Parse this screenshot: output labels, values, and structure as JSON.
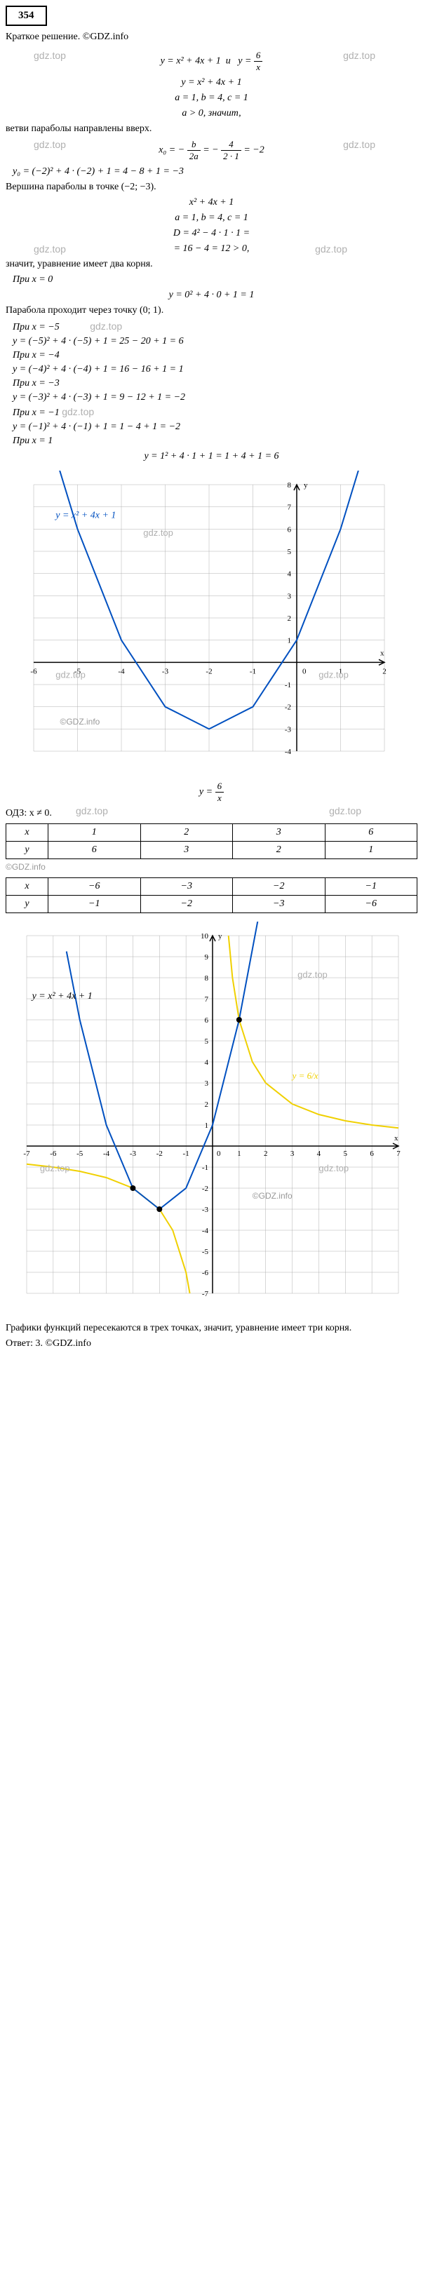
{
  "problem_number": "354",
  "copyright": "Краткое решение. ©GDZ.info",
  "wm_text": "gdz.top",
  "eq_initial_a": "y = x² + 4x + 1",
  "eq_initial_b": "y = ",
  "frac_6_x_num": "6",
  "frac_6_x_den": "x",
  "eq_parabola": "y = x² + 4x + 1",
  "coeffs": "a = 1, b = 4, c = 1",
  "a_positive": "a > 0, значит,",
  "branches_up": "ветви параболы направлены вверх.",
  "x0_formula_a": "x₀ = −",
  "x0_frac1_num": "b",
  "x0_frac1_den": "2a",
  "x0_formula_b": " = −",
  "x0_frac2_num": "4",
  "x0_frac2_den": "2 · 1",
  "x0_formula_c": " = −2",
  "y0_calc": "y₀ = (−2)² + 4 · (−2) + 1 = 4 − 8 + 1 = −3",
  "vertex": "Вершина параболы в точке (−2; −3).",
  "disc_eq": "x² + 4x + 1",
  "disc_coeffs": "a = 1, b = 4, c = 1",
  "disc_formula": "D = 4² − 4 · 1 · 1 =",
  "disc_result": "= 16 − 4 = 12 > 0,",
  "two_roots": "значит, уравнение имеет два корня.",
  "at_x0": "При x = 0",
  "y_at_0": "y = 0² + 4 · 0 + 1 = 1",
  "through_01": "Парабола проходит через точку (0; 1).",
  "at_x_neg5": "При x = −5",
  "y_at_neg5": "y = (−5)² + 4 · (−5) + 1 = 25 − 20 + 1 = 6",
  "at_x_neg4": "При x = −4",
  "y_at_neg4": "y = (−4)² + 4 · (−4) + 1 = 16 − 16 + 1 = 1",
  "at_x_neg3": "При x = −3",
  "y_at_neg3": "y = (−3)² + 4 · (−3) + 1 = 9 − 12 + 1 = −2",
  "at_x_neg1": "При x = −1",
  "y_at_neg1": "y = (−1)² + 4 · (−1) + 1 = 1 − 4 + 1 = −2",
  "at_x_1": "При x = 1",
  "y_at_1": "y = 1² + 4 · 1 + 1 = 1 + 4 + 1 = 6",
  "chart1": {
    "type": "line",
    "eq_label": "y = x² + 4x + 1",
    "xlim": [
      -6,
      2
    ],
    "ylim": [
      -4,
      8
    ],
    "xticks": [
      -6,
      -5,
      -4,
      -3,
      -2,
      -1,
      0,
      1,
      2
    ],
    "yticks": [
      -4,
      -3,
      -2,
      -1,
      1,
      2,
      3,
      4,
      5,
      6,
      7,
      8
    ],
    "axis_color": "#000000",
    "grid_color": "#b0b0b0",
    "line_color": "#0050c0",
    "line_width": 2,
    "parabola_points": [
      [
        -5.5,
        9.25
      ],
      [
        -5,
        6
      ],
      [
        -4,
        1
      ],
      [
        -3,
        -2
      ],
      [
        -2,
        -3
      ],
      [
        -1,
        -2
      ],
      [
        0,
        1
      ],
      [
        1,
        6
      ],
      [
        1.5,
        9.25
      ]
    ],
    "background_color": "#ffffff",
    "label_fontsize": 11,
    "watermark_color": "#b0b0b0"
  },
  "y_eq_6x": "y = ",
  "odz": "ОДЗ: x ≠ 0.",
  "table1": {
    "headers": [
      "x",
      "y"
    ],
    "x_values": [
      "1",
      "2",
      "3",
      "6"
    ],
    "y_values": [
      "6",
      "3",
      "2",
      "1"
    ]
  },
  "gdz_info": "©GDZ.info",
  "table2": {
    "headers": [
      "x",
      "y"
    ],
    "x_values": [
      "−6",
      "−3",
      "−2",
      "−1"
    ],
    "y_values": [
      "−1",
      "−2",
      "−3",
      "−6"
    ]
  },
  "chart2": {
    "type": "line",
    "eq_label_parabola": "y = x² + 4x + 1",
    "eq_label_hyper": "y = 6/x",
    "xlim": [
      -7,
      7
    ],
    "ylim": [
      -7,
      10
    ],
    "xticks": [
      -7,
      -6,
      -5,
      -4,
      -3,
      -2,
      -1,
      0,
      1,
      2,
      3,
      4,
      5,
      6,
      7
    ],
    "yticks": [
      -7,
      -6,
      -5,
      -4,
      -3,
      -2,
      -1,
      1,
      2,
      3,
      4,
      5,
      6,
      7,
      8,
      9,
      10
    ],
    "axis_color": "#000000",
    "grid_color": "#b0b0b0",
    "parabola_color": "#0050c0",
    "hyperbola_color": "#f0d000",
    "line_width": 2,
    "parabola_points": [
      [
        -5.5,
        9.25
      ],
      [
        -5,
        6
      ],
      [
        -4,
        1
      ],
      [
        -3,
        -2
      ],
      [
        -2,
        -3
      ],
      [
        -1,
        -2
      ],
      [
        0,
        1
      ],
      [
        1,
        6
      ],
      [
        1.7,
        10.69
      ]
    ],
    "hyperbola_pos": [
      [
        0.6,
        10
      ],
      [
        0.75,
        8
      ],
      [
        1,
        6
      ],
      [
        1.5,
        4
      ],
      [
        2,
        3
      ],
      [
        3,
        2
      ],
      [
        4,
        1.5
      ],
      [
        5,
        1.2
      ],
      [
        6,
        1
      ],
      [
        7,
        0.857
      ]
    ],
    "hyperbola_neg": [
      [
        -7,
        -0.857
      ],
      [
        -6,
        -1
      ],
      [
        -5,
        -1.2
      ],
      [
        -4,
        -1.5
      ],
      [
        -3,
        -2
      ],
      [
        -2,
        -3
      ],
      [
        -1.5,
        -4
      ],
      [
        -1,
        -6
      ],
      [
        -0.857,
        -7
      ]
    ],
    "intersection_points": [
      [
        1,
        6
      ],
      [
        -3,
        -2
      ],
      [
        -2,
        -3
      ]
    ],
    "point_color": "#000000",
    "point_radius": 4,
    "background_color": "#ffffff",
    "label_fontsize": 11,
    "hyper_label_color": "#f0d000"
  },
  "conclusion": "Графики функций пересекаются в трех точках, значит, уравнение имеет три корня.",
  "answer": "Ответ: 3. ©GDZ.info"
}
